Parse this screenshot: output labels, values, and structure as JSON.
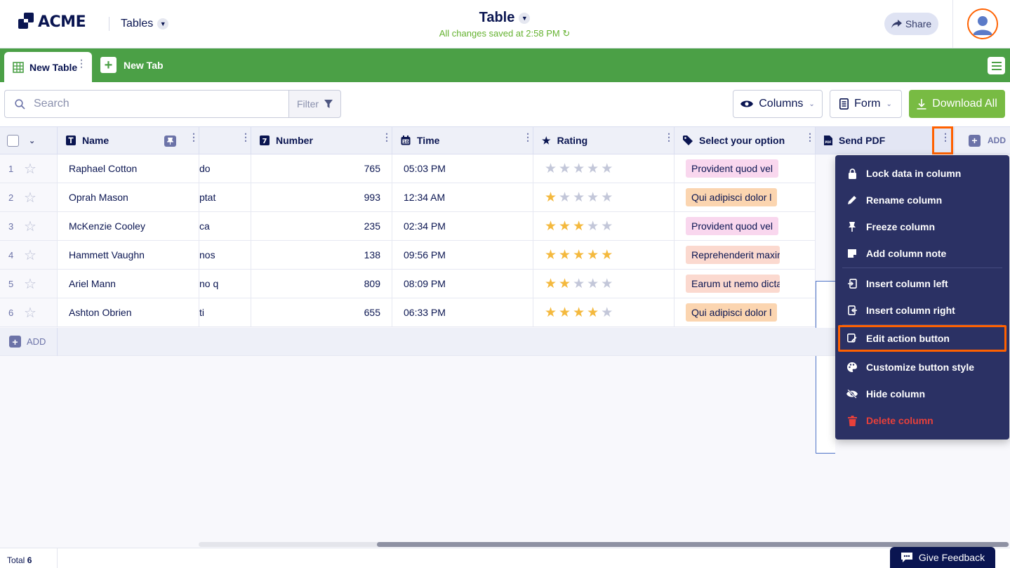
{
  "header": {
    "logo_text": "ACME",
    "app_label": "Tables",
    "title": "Table",
    "save_status": "All changes saved at 2:58 PM",
    "share_label": "Share"
  },
  "tabs": {
    "active_label": "New Table",
    "new_tab_label": "New Tab"
  },
  "toolbar": {
    "search_placeholder": "Search",
    "filter_label": "Filter",
    "columns_label": "Columns",
    "form_label": "Form",
    "download_label": "Download All"
  },
  "columns": [
    {
      "label": "Name",
      "icon": "text-type-icon"
    },
    {
      "label": "",
      "icon": ""
    },
    {
      "label": "Number",
      "icon": "number-type-icon"
    },
    {
      "label": "Time",
      "icon": "calendar-icon"
    },
    {
      "label": "Rating",
      "icon": "star-icon"
    },
    {
      "label": "Select your option",
      "icon": "tag-icon"
    },
    {
      "label": "Send PDF",
      "icon": "pdf-icon"
    }
  ],
  "add_column_label": "ADD",
  "rows": [
    {
      "index": "1",
      "name": "Raphael Cotton",
      "col2": "do",
      "number": "765",
      "time": "05:03 PM",
      "rating": 0,
      "option": "Provident quod vel",
      "option_color": "#f9d7ee"
    },
    {
      "index": "2",
      "name": "Oprah Mason",
      "col2": "ptat",
      "number": "993",
      "time": "12:34 AM",
      "rating": 1,
      "option": "Qui adipisci dolor l",
      "option_color": "#fbd5b0"
    },
    {
      "index": "3",
      "name": "McKenzie Cooley",
      "col2": "ca",
      "number": "235",
      "time": "02:34 PM",
      "rating": 3,
      "option": "Provident quod vel",
      "option_color": "#f9d7ee"
    },
    {
      "index": "4",
      "name": "Hammett Vaughn",
      "col2": "nos",
      "number": "138",
      "time": "09:56 PM",
      "rating": 5,
      "option": "Reprehenderit maxime",
      "option_color": "#fbd9cf"
    },
    {
      "index": "5",
      "name": "Ariel Mann",
      "col2": "no q",
      "number": "809",
      "time": "08:09 PM",
      "rating": 2,
      "option": "Earum ut nemo dicta",
      "option_color": "#fbd9cf"
    },
    {
      "index": "6",
      "name": "Ashton Obrien",
      "col2": "ti",
      "number": "655",
      "time": "06:33 PM",
      "rating": 4,
      "option": "Qui adipisci dolor l",
      "option_color": "#fbd5b0"
    }
  ],
  "add_row_label": "ADD",
  "footer": {
    "total_label": "Total",
    "total_value": "6",
    "feedback_label": "Give Feedback"
  },
  "context_menu": [
    {
      "label": "Lock data in column",
      "icon": "lock-icon"
    },
    {
      "label": "Rename column",
      "icon": "pencil-icon"
    },
    {
      "label": "Freeze column",
      "icon": "pin-icon"
    },
    {
      "label": "Add column note",
      "icon": "note-icon"
    },
    {
      "label": "Insert column left",
      "icon": "insert-left-icon"
    },
    {
      "label": "Insert column right",
      "icon": "insert-right-icon"
    },
    {
      "label": "Edit action button",
      "icon": "edit-button-icon"
    },
    {
      "label": "Customize button style",
      "icon": "palette-icon"
    },
    {
      "label": "Hide column",
      "icon": "eye-slash-icon"
    },
    {
      "label": "Delete column",
      "icon": "trash-icon"
    }
  ],
  "colors": {
    "accent_green": "#4ba046",
    "download_green": "#78bb43",
    "navy": "#0a1551",
    "menu_bg": "#2b3164",
    "highlight": "#ff6100",
    "star_filled": "#f4b93e",
    "star_empty": "#c3c7d9",
    "danger": "#e8403a"
  }
}
